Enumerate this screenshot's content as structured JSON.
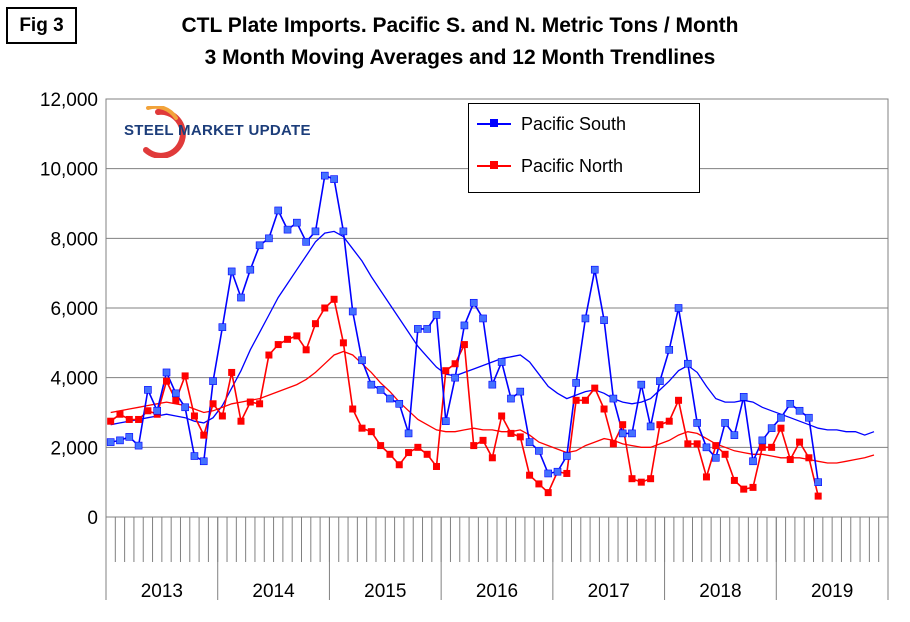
{
  "figure_label": "Fig 3",
  "logo_text": "STEEL MARKET UPDATE",
  "chart_data": {
    "type": "line",
    "title": "CTL Plate Imports. Pacific S. and N. Metric Tons / Month",
    "subtitle": "3 Month Moving Averages and 12 Month Trendlines",
    "xlabel": "",
    "ylabel": "",
    "ylim": [
      0,
      12000
    ],
    "yticks": [
      0,
      2000,
      4000,
      6000,
      8000,
      10000,
      12000
    ],
    "ytick_labels": [
      "0",
      "2,000",
      "4,000",
      "6,000",
      "8,000",
      "10,000",
      "12,000"
    ],
    "year_labels": [
      "2013",
      "2014",
      "2015",
      "2016",
      "2017",
      "2018",
      "2019"
    ],
    "grid": "horizontal",
    "legend_position": "top-right",
    "colors": {
      "south": "#0000ff",
      "north": "#ff0000",
      "south_marker": "#4472ff",
      "grid": "#808080"
    },
    "series": [
      {
        "name": "Pacific South",
        "values": [
          2150,
          2200,
          2300,
          2050,
          3650,
          3050,
          4150,
          3550,
          3150,
          1750,
          1600,
          3900,
          5450,
          7050,
          6300,
          7100,
          7800,
          8000,
          8800,
          8250,
          8450,
          7900,
          8200,
          9800,
          9700,
          8200,
          5900,
          4500,
          3800,
          3650,
          3400,
          3250,
          2400,
          5400,
          5400,
          5800,
          2750,
          4000,
          5500,
          6150,
          5700,
          3800,
          4450,
          3400,
          3600,
          2150,
          1900,
          1250,
          1300,
          1750,
          3850,
          5700,
          7100,
          5650,
          3400,
          2400,
          2400,
          3800,
          2600,
          3900,
          4800,
          6000,
          4400,
          2700,
          2000,
          1700,
          2700,
          2350,
          3450,
          1600,
          2200,
          2550,
          2850,
          3250,
          3050,
          2850,
          1000
        ]
      },
      {
        "name": "Pacific North",
        "values": [
          2750,
          2950,
          2800,
          2800,
          3050,
          2950,
          3900,
          3350,
          4050,
          2900,
          2350,
          3250,
          2900,
          4150,
          2750,
          3300,
          3250,
          4650,
          4950,
          5100,
          5200,
          4800,
          5550,
          6000,
          6250,
          5000,
          3100,
          2550,
          2450,
          2050,
          1800,
          1500,
          1850,
          2000,
          1800,
          1450,
          4200,
          4400,
          4950,
          2050,
          2200,
          1700,
          2900,
          2400,
          2300,
          1200,
          950,
          700,
          1300,
          1250,
          3350,
          3350,
          3700,
          3100,
          2100,
          2650,
          1100,
          1000,
          1100,
          2650,
          2750,
          3350,
          2100,
          2100,
          1150,
          2050,
          1800,
          1050,
          800,
          850,
          2000,
          2000,
          2550,
          1650,
          2150,
          1700,
          600
        ]
      },
      {
        "name": "",
        "values": [
          2650,
          2700,
          2750,
          2800,
          2850,
          2900,
          2950,
          2900,
          2850,
          2750,
          2700,
          2850,
          3200,
          3700,
          4200,
          4800,
          5300,
          5800,
          6300,
          6700,
          7100,
          7500,
          7900,
          8150,
          8200,
          8050,
          7700,
          7350,
          6900,
          6500,
          6100,
          5700,
          5300,
          4900,
          4600,
          4300,
          4100,
          4050,
          4150,
          4250,
          4350,
          4450,
          4550,
          4600,
          4650,
          4450,
          4100,
          3750,
          3550,
          3400,
          3500,
          3600,
          3650,
          3550,
          3400,
          3300,
          3250,
          3300,
          3400,
          3650,
          3900,
          4200,
          4350,
          4150,
          3750,
          3400,
          3300,
          3300,
          3350,
          3300,
          3150,
          3050,
          2950,
          2850,
          2750,
          2650,
          2550,
          2500,
          2500,
          2450,
          2450,
          2350,
          2450
        ]
      },
      {
        "name": "",
        "values": [
          3000,
          3050,
          3100,
          3150,
          3200,
          3250,
          3300,
          3250,
          3200,
          3100,
          3000,
          3050,
          3150,
          3250,
          3300,
          3350,
          3400,
          3500,
          3600,
          3700,
          3800,
          3950,
          4150,
          4400,
          4650,
          4750,
          4650,
          4400,
          4150,
          3850,
          3600,
          3300,
          3050,
          2800,
          2650,
          2500,
          2450,
          2450,
          2500,
          2550,
          2500,
          2500,
          2450,
          2450,
          2500,
          2350,
          2150,
          2050,
          1950,
          1850,
          1900,
          2050,
          2150,
          2250,
          2200,
          2100,
          2050,
          2000,
          2000,
          2100,
          2200,
          2350,
          2450,
          2400,
          2250,
          2100,
          2000,
          1900,
          1850,
          1800,
          1800,
          1750,
          1700,
          1700,
          1700,
          1650,
          1600,
          1550,
          1550,
          1600,
          1650,
          1700,
          1780
        ]
      }
    ]
  }
}
